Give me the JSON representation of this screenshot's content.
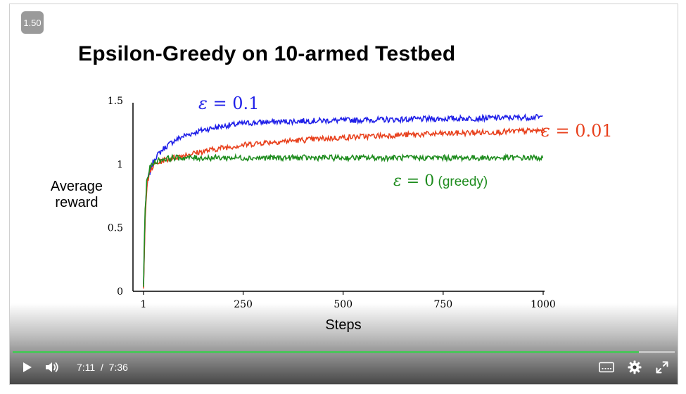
{
  "player": {
    "speed_badge": "1.50",
    "current_time": "7:11",
    "separator": "/",
    "duration": "7:36",
    "progress": 0.946,
    "accent_color": "#4cc35b"
  },
  "slide": {
    "title": "Epsilon-Greedy on 10-armed Testbed"
  },
  "chart_data": {
    "type": "line",
    "xlabel": "Steps",
    "ylabel_lines": [
      "Average",
      "reward"
    ],
    "x_ticks": [
      "1",
      "250",
      "500",
      "750",
      "1000"
    ],
    "y_ticks": [
      "0",
      "0.5",
      "1",
      "1.5"
    ],
    "xlim": [
      1,
      1000
    ],
    "ylim": [
      0,
      1.5
    ],
    "grid": false,
    "legend": "inline labels at line ends",
    "series": [
      {
        "name": "ε = 0.1",
        "label_sym": "ε",
        "label_eq": "=",
        "label_val": "0.1",
        "label_extra": "",
        "color": "#1f1fe8",
        "x": [
          1,
          5,
          10,
          20,
          30,
          50,
          75,
          100,
          150,
          200,
          250,
          300,
          400,
          500,
          600,
          700,
          800,
          900,
          1000
        ],
        "y": [
          0.05,
          0.6,
          0.85,
          0.98,
          1.05,
          1.12,
          1.18,
          1.22,
          1.27,
          1.3,
          1.32,
          1.33,
          1.34,
          1.345,
          1.35,
          1.355,
          1.36,
          1.365,
          1.37
        ]
      },
      {
        "name": "ε = 0.01",
        "label_sym": "ε",
        "label_eq": "=",
        "label_val": "0.01",
        "label_extra": "",
        "color": "#e8401c",
        "x": [
          1,
          5,
          10,
          20,
          30,
          50,
          75,
          100,
          150,
          200,
          250,
          300,
          400,
          500,
          600,
          700,
          800,
          900,
          1000
        ],
        "y": [
          0.05,
          0.6,
          0.85,
          0.96,
          1.0,
          1.03,
          1.05,
          1.07,
          1.1,
          1.13,
          1.15,
          1.17,
          1.19,
          1.21,
          1.225,
          1.235,
          1.245,
          1.255,
          1.265
        ]
      },
      {
        "name": "ε = 0 (greedy)",
        "label_sym": "ε",
        "label_eq": "=",
        "label_val": "0",
        "label_extra": "(greedy)",
        "color": "#1e8c1e",
        "x": [
          1,
          5,
          10,
          20,
          30,
          50,
          75,
          100,
          150,
          200,
          300,
          400,
          500,
          600,
          700,
          800,
          900,
          1000
        ],
        "y": [
          0.05,
          0.65,
          0.9,
          0.99,
          1.02,
          1.04,
          1.05,
          1.05,
          1.05,
          1.05,
          1.05,
          1.05,
          1.05,
          1.05,
          1.05,
          1.05,
          1.05,
          1.05
        ]
      }
    ]
  }
}
